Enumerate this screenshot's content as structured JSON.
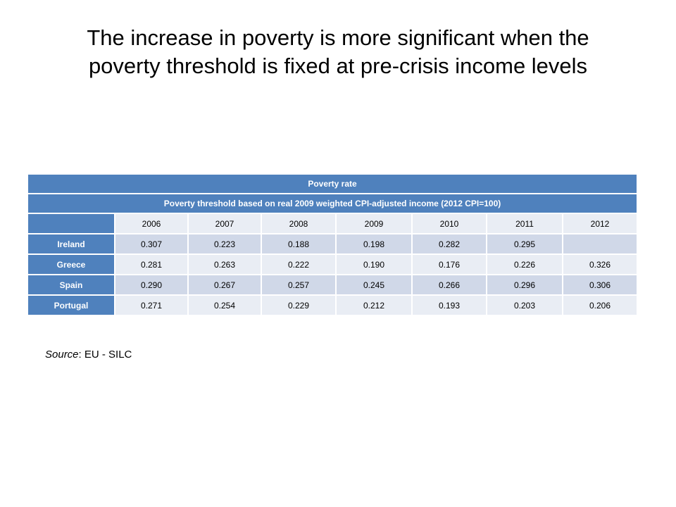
{
  "title": {
    "line1": "The increase in poverty is more significant when the",
    "line2": "poverty threshold is fixed at pre-crisis income levels"
  },
  "table": {
    "header1": "Poverty rate",
    "header2": "Poverty threshold based on real 2009 weighted CPI-adjusted income (2012 CPI=100)",
    "years": [
      "2006",
      "2007",
      "2008",
      "2009",
      "2010",
      "2011",
      "2012"
    ],
    "rows": [
      {
        "country": "Ireland",
        "values": [
          "0.307",
          "0.223",
          "0.188",
          "0.198",
          "0.282",
          "0.295",
          ""
        ]
      },
      {
        "country": "Greece",
        "values": [
          "0.281",
          "0.263",
          "0.222",
          "0.190",
          "0.176",
          "0.226",
          "0.326"
        ]
      },
      {
        "country": "Spain",
        "values": [
          "0.290",
          "0.267",
          "0.257",
          "0.245",
          "0.266",
          "0.296",
          "0.306"
        ]
      },
      {
        "country": "Portugal",
        "values": [
          "0.271",
          "0.254",
          "0.229",
          "0.212",
          "0.193",
          "0.203",
          "0.206"
        ]
      }
    ]
  },
  "source": {
    "label": "Source",
    "text": ": EU - SILC"
  }
}
